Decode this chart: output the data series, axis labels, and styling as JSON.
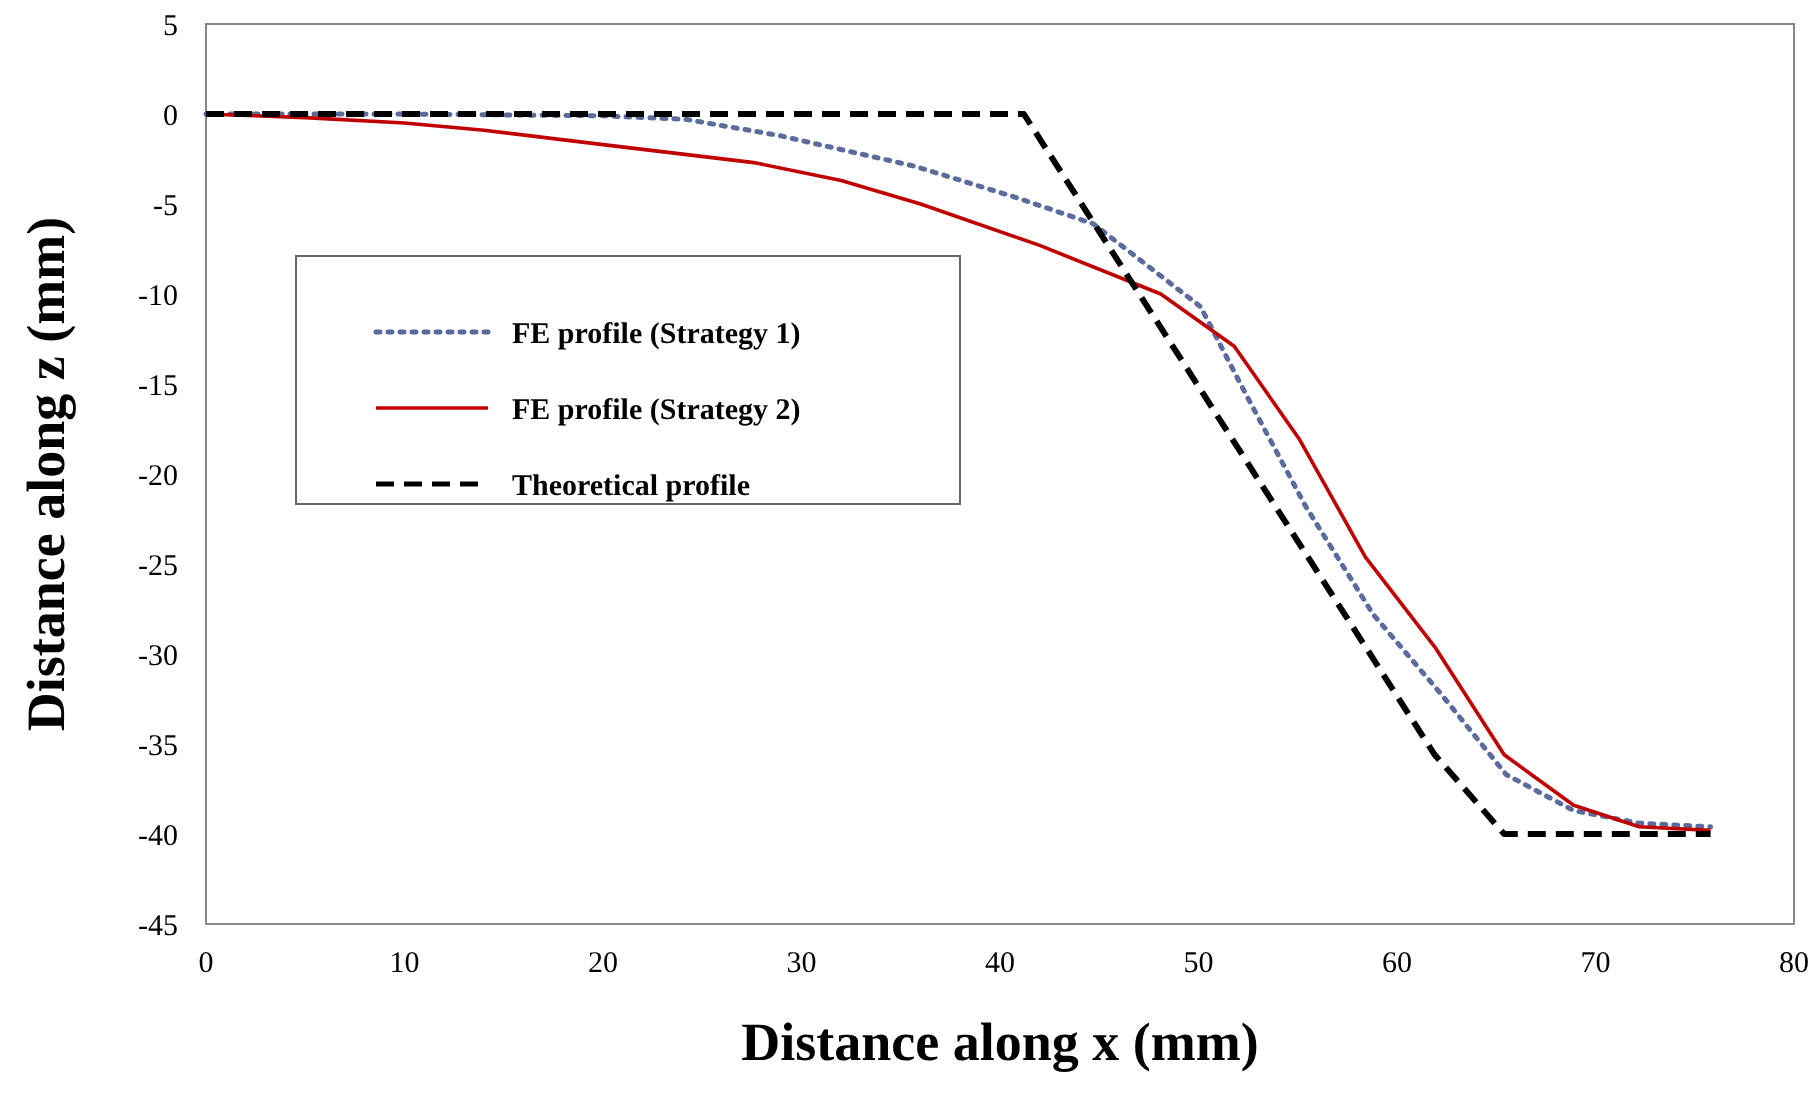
{
  "chart_data": {
    "type": "line",
    "xlabel": "Distance along x (mm)",
    "ylabel": "Distance along z (mm)",
    "xlim": [
      0,
      80
    ],
    "xticks": [
      0,
      10,
      20,
      30,
      40,
      50,
      60,
      70,
      80
    ],
    "ylim": [
      -45,
      5
    ],
    "yticks": [
      -45,
      -40,
      -35,
      -30,
      -25,
      -20,
      -15,
      -10,
      -5,
      0,
      5
    ],
    "grid": false,
    "legend": "left",
    "marker": "none",
    "series": [
      {
        "name": "FE profile (Strategy 1)",
        "color": "#5a6b9c",
        "line_style": "dotted",
        "x": [
          0,
          10,
          20,
          24.2,
          28.9,
          35.7,
          40.7,
          44.7,
          50.1,
          52.4,
          55.4,
          58.8,
          62.2,
          65.5,
          68.9,
          72.2,
          75.8
        ],
        "values": [
          0,
          0,
          -0.1,
          -0.3,
          -1.2,
          -2.9,
          -4.6,
          -6.1,
          -10.7,
          -15.6,
          -21.8,
          -27.8,
          -32.2,
          -36.7,
          -38.7,
          -39.4,
          -39.6
        ]
      },
      {
        "name": "FE profile (Strategy 2)",
        "color": "#c00000",
        "line_style": "solid",
        "x": [
          0,
          5,
          10,
          14,
          20,
          27.6,
          32,
          36,
          42,
          48.1,
          51.8,
          55.1,
          58.4,
          61.9,
          65.4,
          68.9,
          72.2,
          75.8
        ],
        "values": [
          0,
          -0.2,
          -0.5,
          -0.9,
          -1.7,
          -2.7,
          -3.7,
          -5,
          -7.3,
          -10,
          -12.9,
          -18.1,
          -24.6,
          -29.6,
          -35.6,
          -38.4,
          -39.6,
          -39.8
        ]
      },
      {
        "name": "Theoretical profile",
        "color": "#000000",
        "line_style": "dashed",
        "x": [
          0,
          41.2,
          61.9,
          65.4,
          75.8
        ],
        "values": [
          0,
          0,
          -35.6,
          -40,
          -40
        ]
      }
    ]
  }
}
